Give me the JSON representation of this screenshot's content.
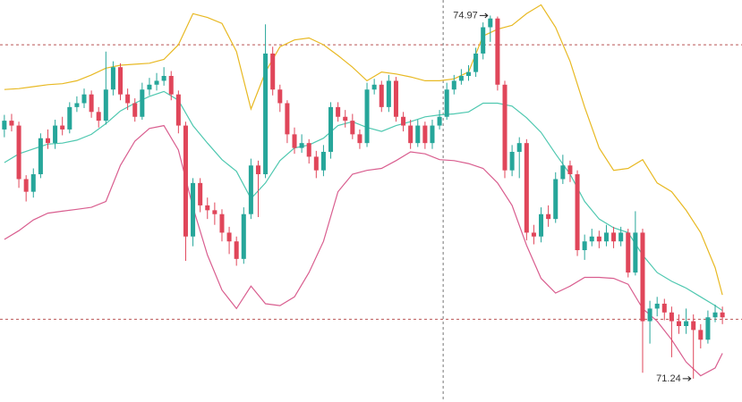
{
  "chart_data": {
    "type": "candlestick",
    "ylim": [
      71.0,
      75.13
    ],
    "xlim": [
      -0.6,
      101.7
    ],
    "up_color": "#26a69a",
    "down_color": "#e0465a",
    "hlines": [
      74.67,
      71.85
    ],
    "vline": 60.5,
    "open": [
      73.8,
      73.89,
      73.84,
      73.29,
      73.16,
      73.34,
      73.71,
      73.66,
      73.84,
      73.8,
      74.03,
      74.07,
      74.16,
      73.98,
      73.89,
      74.21,
      74.44,
      74.16,
      74.07,
      73.93,
      74.21,
      74.26,
      74.3,
      74.35,
      74.16,
      73.84,
      72.7,
      73.25,
      73.02,
      72.97,
      72.93,
      72.74,
      72.65,
      72.47,
      72.93,
      73.43,
      73.34,
      74.58,
      74.21,
      74.07,
      73.75,
      73.61,
      73.66,
      73.52,
      73.38,
      73.57,
      74.03,
      73.93,
      73.89,
      73.75,
      73.66,
      74.21,
      74.26,
      74.03,
      74.3,
      73.93,
      73.84,
      73.66,
      73.84,
      73.66,
      73.84,
      73.93,
      74.21,
      74.3,
      74.35,
      74.39,
      74.58,
      74.85,
      74.94,
      74.26,
      73.38,
      73.57,
      73.66,
      72.74,
      72.7,
      72.93,
      72.88,
      73.29,
      73.43,
      73.34,
      72.56,
      72.65,
      72.7,
      72.65,
      72.74,
      72.65,
      72.74,
      72.33,
      72.74,
      71.83,
      71.96,
      72.01,
      71.92,
      71.83,
      71.78,
      71.83,
      71.74,
      71.64,
      71.87,
      71.92
    ],
    "high": [
      73.95,
      73.96,
      73.88,
      73.33,
      73.4,
      73.76,
      73.8,
      73.9,
      73.93,
      74.08,
      74.14,
      74.22,
      74.2,
      74.03,
      74.6,
      74.5,
      74.48,
      74.22,
      74.12,
      74.28,
      74.33,
      74.38,
      74.44,
      74.4,
      74.2,
      73.88,
      73.3,
      73.3,
      73.1,
      73.05,
      72.98,
      72.8,
      72.7,
      73.0,
      73.5,
      73.48,
      74.88,
      74.65,
      74.26,
      74.1,
      73.82,
      73.75,
      73.7,
      73.58,
      73.64,
      74.08,
      74.08,
      74.0,
      73.96,
      73.8,
      74.28,
      74.32,
      74.3,
      74.36,
      74.34,
      73.98,
      73.9,
      73.9,
      73.88,
      73.9,
      74.0,
      74.28,
      74.36,
      74.42,
      74.46,
      74.64,
      74.9,
      74.97,
      74.96,
      74.3,
      73.64,
      73.72,
      73.7,
      72.82,
      73.0,
      73.02,
      73.36,
      73.54,
      73.48,
      73.38,
      72.72,
      72.78,
      72.76,
      72.82,
      72.8,
      72.8,
      72.78,
      72.96,
      72.78,
      72.04,
      72.08,
      72.06,
      71.98,
      71.9,
      71.96,
      71.9,
      71.8,
      71.94,
      72.0,
      71.98
    ],
    "low": [
      73.72,
      73.78,
      73.2,
      73.06,
      73.1,
      73.3,
      73.6,
      73.6,
      73.74,
      73.76,
      73.98,
      74.02,
      73.92,
      73.82,
      73.85,
      74.15,
      74.1,
      74.0,
      73.88,
      73.9,
      74.15,
      74.2,
      74.25,
      74.1,
      73.76,
      72.45,
      72.6,
      72.95,
      72.88,
      72.82,
      72.65,
      72.52,
      72.4,
      72.42,
      72.88,
      72.9,
      73.3,
      74.15,
      73.98,
      73.66,
      73.55,
      73.56,
      73.45,
      73.3,
      73.32,
      73.5,
      73.88,
      73.82,
      73.7,
      73.6,
      73.62,
      74.16,
      73.98,
      73.98,
      73.88,
      73.78,
      73.6,
      73.62,
      73.6,
      73.6,
      73.8,
      73.9,
      74.16,
      74.26,
      74.3,
      74.34,
      74.52,
      74.7,
      74.2,
      73.3,
      73.32,
      73.3,
      72.66,
      72.62,
      72.64,
      72.8,
      72.84,
      73.24,
      73.26,
      72.5,
      72.46,
      72.6,
      72.58,
      72.6,
      72.58,
      72.6,
      72.28,
      72.3,
      71.3,
      71.6,
      71.88,
      71.84,
      71.46,
      71.7,
      71.7,
      71.24,
      71.55,
      71.6,
      71.82,
      71.8
    ],
    "close": [
      73.89,
      73.84,
      73.29,
      73.16,
      73.34,
      73.71,
      73.66,
      73.84,
      73.8,
      74.03,
      74.07,
      74.16,
      73.98,
      73.89,
      74.21,
      74.44,
      74.16,
      74.07,
      73.93,
      74.21,
      74.26,
      74.3,
      74.35,
      74.16,
      73.84,
      72.7,
      73.25,
      73.02,
      72.97,
      72.93,
      72.74,
      72.65,
      72.47,
      72.93,
      73.43,
      73.34,
      74.58,
      74.21,
      74.07,
      73.75,
      73.61,
      73.66,
      73.52,
      73.38,
      73.57,
      74.03,
      73.93,
      73.89,
      73.75,
      73.66,
      74.21,
      74.26,
      74.03,
      74.3,
      73.93,
      73.84,
      73.66,
      73.84,
      73.66,
      73.84,
      73.93,
      74.21,
      74.3,
      74.35,
      74.39,
      74.58,
      74.85,
      74.94,
      74.26,
      73.38,
      73.57,
      73.66,
      72.74,
      72.7,
      72.93,
      72.88,
      73.29,
      73.43,
      73.34,
      72.56,
      72.65,
      72.7,
      72.65,
      72.74,
      72.65,
      72.74,
      72.33,
      72.74,
      71.83,
      71.96,
      72.01,
      71.92,
      71.83,
      71.78,
      71.83,
      71.74,
      71.64,
      71.87,
      71.92,
      71.87
    ],
    "bands": {
      "x": [
        0,
        2,
        4,
        6,
        8,
        10,
        12,
        14,
        16,
        18,
        20,
        22,
        24,
        26,
        28,
        30,
        32,
        34,
        36,
        38,
        40,
        42,
        44,
        46,
        48,
        50,
        52,
        54,
        56,
        58,
        60,
        62,
        64,
        66,
        68,
        70,
        72,
        74,
        76,
        78,
        80,
        82,
        84,
        86,
        88,
        90,
        92,
        94,
        96,
        98,
        99
      ],
      "series": [
        {
          "color": "#e8b923",
          "values": [
            74.21,
            74.22,
            74.24,
            74.26,
            74.27,
            74.3,
            74.36,
            74.43,
            74.46,
            74.47,
            74.48,
            74.52,
            74.67,
            74.99,
            74.95,
            74.89,
            74.6,
            74.01,
            74.39,
            74.65,
            74.72,
            74.74,
            74.67,
            74.56,
            74.44,
            74.3,
            74.39,
            74.37,
            74.34,
            74.3,
            74.3,
            74.32,
            74.39,
            74.76,
            74.83,
            74.87,
            74.99,
            75.08,
            74.85,
            74.5,
            74.03,
            73.61,
            73.38,
            73.4,
            73.49,
            73.25,
            73.16,
            72.97,
            72.74,
            72.38,
            72.1
          ]
        },
        {
          "color": "#4fc8b0",
          "values": [
            73.46,
            73.55,
            73.6,
            73.65,
            73.66,
            73.69,
            73.75,
            73.86,
            73.99,
            74.07,
            74.14,
            74.19,
            74.1,
            73.84,
            73.66,
            73.49,
            73.37,
            73.09,
            73.25,
            73.48,
            73.61,
            73.64,
            73.71,
            73.84,
            73.88,
            73.82,
            73.78,
            73.84,
            73.88,
            73.93,
            73.95,
            73.96,
            73.98,
            74.07,
            74.07,
            74.04,
            73.92,
            73.77,
            73.55,
            73.34,
            73.06,
            72.88,
            72.79,
            72.74,
            72.51,
            72.33,
            72.24,
            72.17,
            72.08,
            71.99,
            71.94
          ]
        },
        {
          "color": "#d95e8f",
          "values": [
            72.67,
            72.76,
            72.87,
            72.94,
            72.96,
            72.98,
            73.0,
            73.06,
            73.43,
            73.68,
            73.81,
            73.84,
            73.59,
            73.0,
            72.51,
            72.15,
            71.96,
            72.19,
            72.01,
            71.99,
            72.08,
            72.33,
            72.65,
            73.16,
            73.34,
            73.38,
            73.4,
            73.48,
            73.57,
            73.55,
            73.49,
            73.48,
            73.45,
            73.4,
            73.25,
            73.02,
            72.61,
            72.27,
            72.12,
            72.19,
            72.28,
            72.28,
            72.27,
            72.21,
            71.96,
            71.83,
            71.64,
            71.41,
            71.27,
            71.35,
            71.5
          ]
        }
      ]
    }
  }
}
